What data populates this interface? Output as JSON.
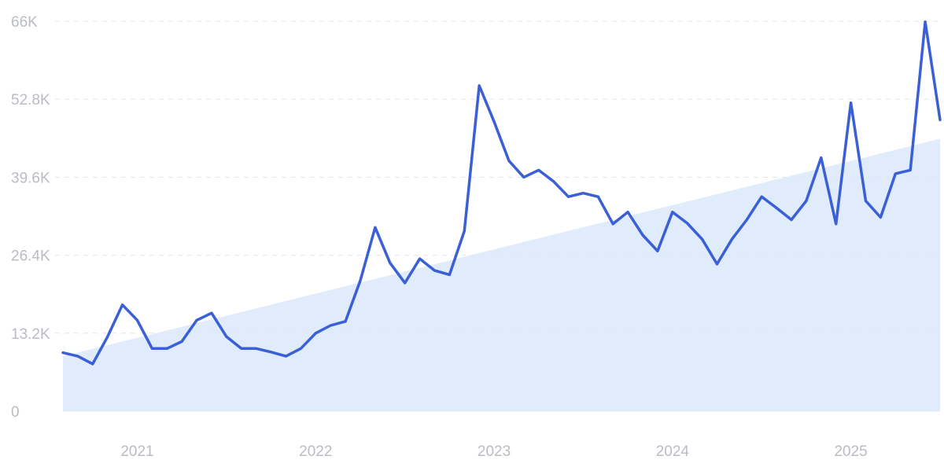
{
  "chart_data": {
    "type": "line",
    "title": "",
    "xlabel": "",
    "ylabel": "",
    "grid": true,
    "ylim": [
      0,
      66000
    ],
    "y_ticks": [
      {
        "value": 0,
        "label": "0"
      },
      {
        "value": 13200,
        "label": "13.2K"
      },
      {
        "value": 26400,
        "label": "26.4K"
      },
      {
        "value": 39600,
        "label": "39.6K"
      },
      {
        "value": 52800,
        "label": "52.8K"
      },
      {
        "value": 66000,
        "label": "66K"
      }
    ],
    "x_ticks": [
      {
        "value": "2021-01",
        "label": "2021"
      },
      {
        "value": "2022-01",
        "label": "2022"
      },
      {
        "value": "2023-01",
        "label": "2023"
      },
      {
        "value": "2024-01",
        "label": "2024"
      },
      {
        "value": "2025-01",
        "label": "2025"
      }
    ],
    "colors": {
      "line": "#3a5fd6",
      "trend_fill": "#dbe8fb",
      "grid": "#e3e5ea",
      "tick_text": "#b9bcc3"
    },
    "series": [
      {
        "x": [
          "2020-08",
          "2020-09",
          "2020-10",
          "2020-11",
          "2020-12",
          "2021-01",
          "2021-02",
          "2021-03",
          "2021-04",
          "2021-05",
          "2021-06",
          "2021-07",
          "2021-08",
          "2021-09",
          "2021-10",
          "2021-11",
          "2021-12",
          "2022-01",
          "2022-02",
          "2022-03",
          "2022-04",
          "2022-05",
          "2022-06",
          "2022-07",
          "2022-08",
          "2022-09",
          "2022-10",
          "2022-11",
          "2022-12",
          "2023-01",
          "2023-02",
          "2023-03",
          "2023-04",
          "2023-05",
          "2023-06",
          "2023-07",
          "2023-08",
          "2023-09",
          "2023-10",
          "2023-11",
          "2023-12",
          "2024-01",
          "2024-02",
          "2024-03",
          "2024-04",
          "2024-05",
          "2024-06",
          "2024-07",
          "2024-08",
          "2024-09",
          "2024-10",
          "2024-11",
          "2024-12",
          "2025-01",
          "2025-02",
          "2025-03",
          "2025-04",
          "2025-05",
          "2025-06",
          "2025-07"
        ],
        "values": [
          9900,
          9300,
          8000,
          12600,
          18000,
          15400,
          10600,
          10600,
          11800,
          15400,
          16600,
          12600,
          10600,
          10600,
          10000,
          9300,
          10600,
          13200,
          14500,
          15200,
          22100,
          31100,
          25100,
          21700,
          25800,
          23800,
          23100,
          30500,
          55100,
          49000,
          42400,
          39600,
          40800,
          38900,
          36300,
          36900,
          36300,
          31700,
          33700,
          29800,
          27100,
          33700,
          31800,
          29100,
          24900,
          29100,
          32400,
          36300,
          34400,
          32400,
          35600,
          42900,
          31700,
          52200,
          35600,
          32800,
          40200,
          40800,
          65900,
          49300
        ]
      }
    ],
    "trend": {
      "type": "area",
      "x": [
        "2020-08",
        "2025-07"
      ],
      "values": [
        9300,
        46100
      ]
    }
  }
}
